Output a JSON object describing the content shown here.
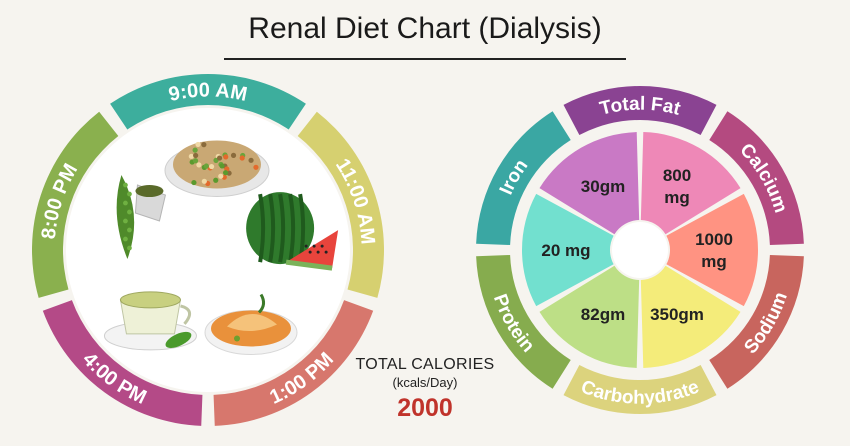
{
  "title": "Renal Diet Chart (Dialysis)",
  "meal_schedule": {
    "times": [
      {
        "label": "9:00 AM",
        "color": "#3dae9d"
      },
      {
        "label": "11:00 AM",
        "color": "#d6d070"
      },
      {
        "label": "1:00 PM",
        "color": "#d7776d"
      },
      {
        "label": "4:00 PM",
        "color": "#b44a87"
      },
      {
        "label": "8:00 PM",
        "color": "#8ab04e"
      }
    ],
    "foods": [
      {
        "icon": "fried-rice-icon"
      },
      {
        "icon": "watermelon-icon"
      },
      {
        "icon": "fish-curry-icon"
      },
      {
        "icon": "green-tea-icon"
      },
      {
        "icon": "bitter-gourd-icon"
      }
    ]
  },
  "nutrients": [
    {
      "name": "Total Fat",
      "value": "30gm",
      "ring_color": "#8a4392",
      "wedge_color": "#c979c5"
    },
    {
      "name": "Calcium",
      "value": "800\nmg",
      "ring_color": "#b44a80",
      "wedge_color": "#ee88b7"
    },
    {
      "name": "Sodium",
      "value": "1000\nmg",
      "ring_color": "#c8655e",
      "wedge_color": "#ff9382"
    },
    {
      "name": "Carbohydrate",
      "value": "350gm",
      "ring_color": "#dcd37d",
      "wedge_color": "#f4ec7a"
    },
    {
      "name": "Protein",
      "value": "82gm",
      "ring_color": "#86ac4e",
      "wedge_color": "#bddf86"
    },
    {
      "name": "Iron",
      "value": "20 mg",
      "ring_color": "#3aa7a3",
      "wedge_color": "#72e0cf"
    }
  ],
  "calories": {
    "label": "TOTAL CALORIES",
    "unit": "(kcals/Day)",
    "value": "2000"
  }
}
